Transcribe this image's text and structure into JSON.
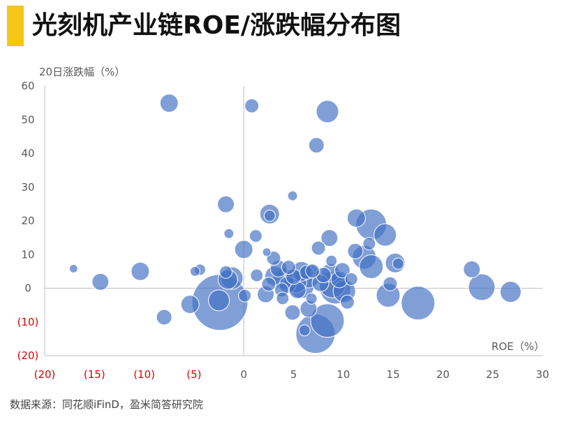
{
  "title": "光刻机产业链ROE/涨跌幅分布图",
  "source": "数据来源：同花顺iFinD，盈米简答研究院",
  "colors": {
    "accent": "#f5c518",
    "bubble": "#4472c4",
    "negative_tick": "#e00000",
    "axis": "#bfbfbf",
    "text": "#595959"
  },
  "chart_data": {
    "type": "scatter",
    "title": "光刻机产业链ROE/涨跌幅分布图",
    "xlabel": "ROE（%）",
    "ylabel": "20日涨跌幅（%）",
    "xlim": [
      -20,
      30
    ],
    "ylim": [
      -20,
      60
    ],
    "x_ticks": [
      -20,
      -15,
      -10,
      -5,
      0,
      5,
      10,
      15,
      20,
      25,
      30
    ],
    "x_tick_labels": [
      "(20)",
      "(15)",
      "(10)",
      "(5)",
      "0",
      "5",
      "10",
      "15",
      "20",
      "25",
      "30"
    ],
    "y_ticks": [
      -20,
      -10,
      0,
      10,
      20,
      30,
      40,
      50,
      60
    ],
    "y_tick_labels": [
      "(20)",
      "(10)",
      "0",
      "10",
      "20",
      "30",
      "40",
      "50",
      "60"
    ],
    "grid": false,
    "legend": "none",
    "note": "bubble size = relative size index",
    "points": [
      {
        "x": -17.1,
        "y": 5.8,
        "s": 6
      },
      {
        "x": -14.4,
        "y": 1.9,
        "s": 12
      },
      {
        "x": -10.4,
        "y": 5.0,
        "s": 13
      },
      {
        "x": -8.0,
        "y": -8.6,
        "s": 11
      },
      {
        "x": -7.5,
        "y": 54.9,
        "s": 13
      },
      {
        "x": -5.4,
        "y": -4.8,
        "s": 13
      },
      {
        "x": -4.9,
        "y": 5.0,
        "s": 7
      },
      {
        "x": -4.4,
        "y": 5.5,
        "s": 8
      },
      {
        "x": -2.4,
        "y": -4.2,
        "s": 40
      },
      {
        "x": -2.5,
        "y": -3.6,
        "s": 15
      },
      {
        "x": -1.8,
        "y": 4.8,
        "s": 9
      },
      {
        "x": -1.8,
        "y": 24.9,
        "s": 12
      },
      {
        "x": -1.6,
        "y": 2.6,
        "s": 14
      },
      {
        "x": -1.5,
        "y": 16.2,
        "s": 7
      },
      {
        "x": -1.2,
        "y": 3.0,
        "s": 16
      },
      {
        "x": 0.0,
        "y": 11.5,
        "s": 13
      },
      {
        "x": 0.1,
        "y": -2.2,
        "s": 9
      },
      {
        "x": 0.8,
        "y": 54.1,
        "s": 10
      },
      {
        "x": 1.2,
        "y": 15.5,
        "s": 9
      },
      {
        "x": 1.3,
        "y": 3.8,
        "s": 9
      },
      {
        "x": 2.3,
        "y": 10.7,
        "s": 6
      },
      {
        "x": 2.2,
        "y": -1.8,
        "s": 12
      },
      {
        "x": 2.5,
        "y": 1.2,
        "s": 10
      },
      {
        "x": 2.6,
        "y": 22.0,
        "s": 14
      },
      {
        "x": 2.6,
        "y": 21.5,
        "s": 8
      },
      {
        "x": 3.0,
        "y": 8.9,
        "s": 10
      },
      {
        "x": 3.1,
        "y": 3.6,
        "s": 14
      },
      {
        "x": 3.5,
        "y": 5.8,
        "s": 12
      },
      {
        "x": 3.8,
        "y": -0.5,
        "s": 10
      },
      {
        "x": 4.0,
        "y": 2.8,
        "s": 15
      },
      {
        "x": 3.9,
        "y": -3.0,
        "s": 9
      },
      {
        "x": 4.4,
        "y": 1.0,
        "s": 12
      },
      {
        "x": 4.5,
        "y": 6.2,
        "s": 10
      },
      {
        "x": 4.9,
        "y": 27.4,
        "s": 7
      },
      {
        "x": 4.9,
        "y": -7.2,
        "s": 11
      },
      {
        "x": 5.0,
        "y": 3.4,
        "s": 11
      },
      {
        "x": 5.2,
        "y": 1.9,
        "s": 16
      },
      {
        "x": 5.4,
        "y": -0.6,
        "s": 12
      },
      {
        "x": 5.8,
        "y": 5.0,
        "s": 14
      },
      {
        "x": 5.8,
        "y": 0.7,
        "s": 18
      },
      {
        "x": 6.1,
        "y": -12.5,
        "s": 8
      },
      {
        "x": 6.3,
        "y": 4.7,
        "s": 10
      },
      {
        "x": 6.5,
        "y": 3.6,
        "s": 17
      },
      {
        "x": 6.5,
        "y": -6.1,
        "s": 12
      },
      {
        "x": 6.8,
        "y": -3.1,
        "s": 8
      },
      {
        "x": 6.9,
        "y": 5.1,
        "s": 10
      },
      {
        "x": 7.2,
        "y": -13.5,
        "s": 28
      },
      {
        "x": 7.3,
        "y": 42.4,
        "s": 11
      },
      {
        "x": 7.5,
        "y": 11.9,
        "s": 10
      },
      {
        "x": 7.7,
        "y": 1.5,
        "s": 12
      },
      {
        "x": 8.0,
        "y": 3.9,
        "s": 11
      },
      {
        "x": 8.4,
        "y": -9.6,
        "s": 24
      },
      {
        "x": 8.4,
        "y": 52.4,
        "s": 16
      },
      {
        "x": 8.6,
        "y": 14.9,
        "s": 12
      },
      {
        "x": 8.7,
        "y": 4.6,
        "s": 13
      },
      {
        "x": 8.8,
        "y": 8.1,
        "s": 8
      },
      {
        "x": 8.9,
        "y": 1.1,
        "s": 19
      },
      {
        "x": 9.2,
        "y": -0.1,
        "s": 22
      },
      {
        "x": 9.6,
        "y": 2.6,
        "s": 12
      },
      {
        "x": 9.9,
        "y": 5.3,
        "s": 11
      },
      {
        "x": 10.1,
        "y": -0.9,
        "s": 16
      },
      {
        "x": 10.4,
        "y": -4.1,
        "s": 10
      },
      {
        "x": 10.8,
        "y": 2.7,
        "s": 9
      },
      {
        "x": 11.2,
        "y": 11.0,
        "s": 11
      },
      {
        "x": 11.3,
        "y": 20.8,
        "s": 13
      },
      {
        "x": 12.1,
        "y": 9.2,
        "s": 17
      },
      {
        "x": 12.6,
        "y": 13.2,
        "s": 9
      },
      {
        "x": 12.8,
        "y": 6.4,
        "s": 17
      },
      {
        "x": 12.8,
        "y": 18.9,
        "s": 22
      },
      {
        "x": 14.2,
        "y": 15.8,
        "s": 16
      },
      {
        "x": 14.5,
        "y": -2.1,
        "s": 17
      },
      {
        "x": 14.7,
        "y": 1.3,
        "s": 10
      },
      {
        "x": 15.2,
        "y": 7.5,
        "s": 14
      },
      {
        "x": 15.5,
        "y": 7.3,
        "s": 8
      },
      {
        "x": 17.5,
        "y": -4.4,
        "s": 24
      },
      {
        "x": 22.9,
        "y": 5.6,
        "s": 12
      },
      {
        "x": 23.9,
        "y": 0.3,
        "s": 19
      },
      {
        "x": 26.8,
        "y": -1.1,
        "s": 15
      }
    ]
  }
}
